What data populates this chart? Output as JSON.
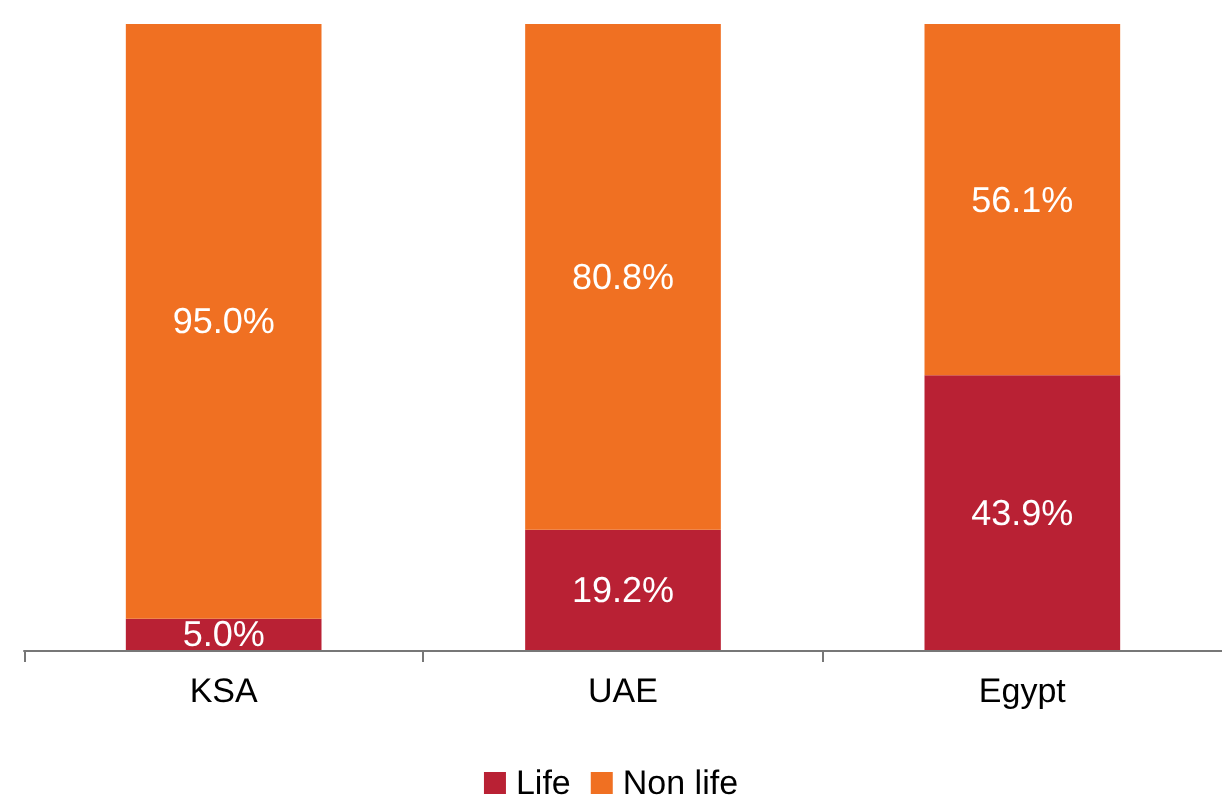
{
  "chart_data": {
    "type": "bar",
    "stacked": true,
    "categories": [
      "KSA",
      "UAE",
      "Egypt"
    ],
    "series": [
      {
        "name": "Life",
        "color": "#b92134",
        "values": [
          5.0,
          19.2,
          43.9
        ],
        "value_labels": [
          "5.0%",
          "19.2%",
          "43.9%"
        ]
      },
      {
        "name": "Non life",
        "color": "#f07022",
        "values": [
          95.0,
          80.8,
          56.1
        ],
        "value_labels": [
          "95.0%",
          "80.8%",
          "56.1%"
        ]
      }
    ],
    "ylim": [
      0,
      100
    ],
    "tick_labels": "x",
    "grid": false,
    "legend": "bottom"
  }
}
